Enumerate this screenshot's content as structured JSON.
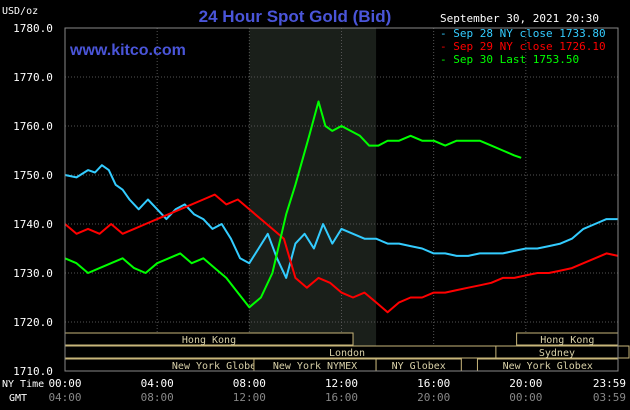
{
  "chart_data": {
    "type": "line",
    "title": "24 Hour Spot Gold (Bid)",
    "watermark": "www.kitco.com",
    "ylabel": "USD/oz",
    "ylim": [
      1710,
      1780
    ],
    "yticks": [
      "1780.0",
      "1770.0",
      "1760.0",
      "1750.0",
      "1740.0",
      "1730.0",
      "1720.0",
      "1710.0"
    ],
    "grid": true,
    "legend_position": "top-right",
    "timestamp": "September 30, 2021 20:30",
    "x_axis": {
      "row1_label": "NY Time",
      "row2_label": "GMT",
      "ny_ticks": [
        "00:00",
        "04:00",
        "08:00",
        "12:00",
        "16:00",
        "20:00",
        "23:59"
      ],
      "gmt_ticks": [
        "04:00",
        "08:00",
        "12:00",
        "16:00",
        "20:00",
        "00:00",
        "03:59"
      ],
      "xlim": [
        0,
        24
      ]
    },
    "highlight_window": [
      8,
      13.5
    ],
    "sessions": [
      {
        "label": "Hong Kong",
        "start": 0,
        "end": 12.5,
        "row": 0
      },
      {
        "label": "London",
        "start": 0,
        "end": 25.3,
        "row": 1
      },
      {
        "label": "New York Globex",
        "start": 0,
        "end": 13.2,
        "row": 2
      },
      {
        "label": "New York NYMEX",
        "start": 8.2,
        "end": 13.5,
        "row": 2
      },
      {
        "label": "NY Globex",
        "start": 13.5,
        "end": 17.2,
        "row": 2
      },
      {
        "label": "Hong Kong",
        "start": 19.6,
        "end": 24,
        "row": 0
      },
      {
        "label": "Sydney",
        "start": 18.7,
        "end": 24,
        "row": 1
      },
      {
        "label": "New York Globex",
        "start": 17.9,
        "end": 24,
        "row": 2
      }
    ],
    "series": [
      {
        "name": "Sep 28 NY close 1733.80",
        "color": "#33ccff",
        "x": [
          0,
          0.5,
          1,
          1.3,
          1.6,
          1.9,
          2.2,
          2.5,
          2.8,
          3.2,
          3.6,
          4,
          4.4,
          4.8,
          5.2,
          5.6,
          6,
          6.4,
          6.8,
          7.2,
          7.6,
          8,
          8.4,
          8.8,
          9.2,
          9.6,
          10,
          10.4,
          10.8,
          11.2,
          11.6,
          12,
          12.5,
          13,
          13.5,
          14,
          14.5,
          15,
          15.5,
          16,
          16.5,
          17,
          17.5,
          18,
          18.5,
          19,
          19.5,
          20,
          20.5,
          21,
          21.5,
          22,
          22.5,
          23,
          23.5,
          24
        ],
        "y": [
          1750,
          1749.5,
          1751,
          1750.5,
          1752,
          1751,
          1748,
          1747,
          1745,
          1743,
          1745,
          1743,
          1741,
          1743,
          1744,
          1742,
          1741,
          1739,
          1740,
          1737,
          1733,
          1732,
          1735,
          1738,
          1733,
          1729,
          1736,
          1738,
          1735,
          1740,
          1736,
          1739,
          1738,
          1737,
          1737,
          1736,
          1736,
          1735.5,
          1735,
          1734,
          1734,
          1733.5,
          1733.5,
          1734,
          1734,
          1734,
          1734.5,
          1735,
          1735,
          1735.5,
          1736,
          1737,
          1739,
          1740,
          1741,
          1741
        ]
      },
      {
        "name": "Sep 29 NY close 1726.10",
        "color": "#ff0000",
        "x": [
          0,
          0.5,
          1,
          1.5,
          2,
          2.5,
          3,
          3.5,
          4,
          4.5,
          5,
          5.5,
          6,
          6.5,
          7,
          7.5,
          8,
          8.5,
          9,
          9.5,
          10,
          10.5,
          11,
          11.5,
          12,
          12.5,
          13,
          13.5,
          14,
          14.5,
          15,
          15.5,
          16,
          16.5,
          17,
          17.5,
          18,
          18.5,
          19,
          19.5,
          20,
          20.5,
          21,
          21.5,
          22,
          22.5,
          23,
          23.5,
          24
        ],
        "y": [
          1740,
          1738,
          1739,
          1738,
          1740,
          1738,
          1739,
          1740,
          1741,
          1742,
          1743,
          1744,
          1745,
          1746,
          1744,
          1745,
          1743,
          1741,
          1739,
          1737,
          1729,
          1727,
          1729,
          1728,
          1726,
          1725,
          1726,
          1724,
          1722,
          1724,
          1725,
          1725,
          1726,
          1726,
          1726.5,
          1727,
          1727.5,
          1728,
          1729,
          1729,
          1729.5,
          1730,
          1730,
          1730.5,
          1731,
          1732,
          1733,
          1734,
          1733.5
        ]
      },
      {
        "name": "Sep 30 Last 1753.50",
        "color": "#00ff00",
        "x": [
          0,
          0.5,
          1,
          1.5,
          2,
          2.5,
          3,
          3.5,
          4,
          4.5,
          5,
          5.5,
          6,
          6.5,
          7,
          7.5,
          8,
          8.5,
          9,
          9.3,
          9.6,
          10,
          10.3,
          10.6,
          11,
          11.3,
          11.6,
          12,
          12.4,
          12.8,
          13.2,
          13.6,
          14,
          14.5,
          15,
          15.5,
          16,
          16.5,
          17,
          17.5,
          18,
          18.5,
          19,
          19.5,
          19.8
        ],
        "y": [
          1733,
          1732,
          1730,
          1731,
          1732,
          1733,
          1731,
          1730,
          1732,
          1733,
          1734,
          1732,
          1733,
          1731,
          1729,
          1726,
          1723,
          1725,
          1730,
          1736,
          1742,
          1748,
          1753,
          1758,
          1765,
          1760,
          1759,
          1760,
          1759,
          1758,
          1756,
          1756,
          1757,
          1757,
          1758,
          1757,
          1757,
          1756,
          1757,
          1757,
          1757,
          1756,
          1755,
          1754,
          1753.5
        ]
      }
    ]
  }
}
